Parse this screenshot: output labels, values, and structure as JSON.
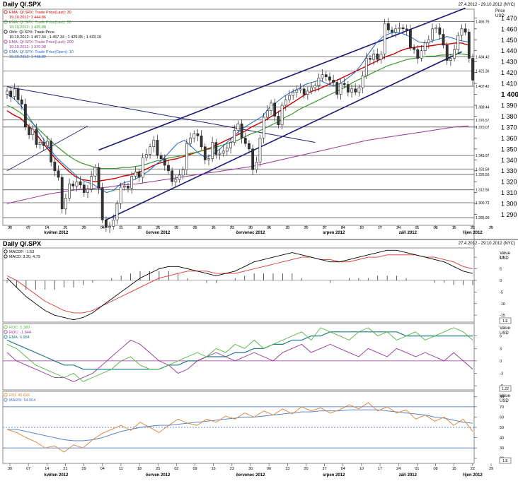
{
  "colors": {
    "candle_up": "#ffffff",
    "candle_down": "#333333",
    "ema30": "#cc0000",
    "ema50": "#3a9a2a",
    "ema200": "#993399",
    "ema10": "#2266cc",
    "trendline": "#1a1a7a",
    "hline": "#555555",
    "macd": "#000000",
    "macd_signal": "#dd3333",
    "roc": "#4fb83a",
    "roc2": "#993399",
    "roc_ema": "#1f7a8a",
    "rsi": "#e08030",
    "rsi_ma": "#4477cc",
    "band_line": "#3366cc"
  },
  "top_panel": {
    "title": "Daily Q/.SPX",
    "date_range": "27.4.2012 - 29.10.2012 (NYC)",
    "axis_title_1": "Price",
    "axis_title_2": "USD",
    "legend": [
      {
        "line1": "EMA: Q/.SPX: Trade Price(Last): 30",
        "line2": "19.10.2012: 1 444.86",
        "color": "#cc0000"
      },
      {
        "line1": "EMA: Q/.SPX: Trade Price(Last): 50",
        "line2": "19.10.2012: 1 435.88",
        "color": "#3a9a2a"
      },
      {
        "line1": "Ohlc: Q/.SPX: Trade Price",
        "line2": "19.10.2012: 1 457.34 ; 1 457.34 ; 1 429.85 ; 1 433.19",
        "color": "#000000"
      },
      {
        "line1": "EMA: Q/.SPX: Trade Price(Last): 200",
        "line2": "19.10.2012: 1 370.98",
        "color": "#993399"
      },
      {
        "line1": "EMA: Q/.SPX: Trade Price(Open): 10",
        "line2": "19.10.2012: 1 448.80",
        "color": "#2266cc"
      }
    ],
    "y_ticks": [
      1290,
      1300,
      1310,
      1320,
      1330,
      1340,
      1350,
      1360,
      1370,
      1380,
      1390,
      1400,
      1410,
      1420,
      1430,
      1440,
      1450,
      1460,
      1470
    ],
    "level_lines": [
      {
        "value": 1466.75,
        "label": "1 466.75"
      },
      {
        "value": 1434.42,
        "label": "1 434.42"
      },
      {
        "value": 1421.36,
        "label": "1 421.36"
      },
      {
        "value": 1407.42,
        "label": "1 407.42"
      },
      {
        "value": 1388.44,
        "label": "1 388.44"
      },
      {
        "value": 1376.57,
        "label": "1 376.57"
      },
      {
        "value": 1370.07,
        "label": "1 370.07"
      },
      {
        "value": 1343.97,
        "label": "1 343.97"
      },
      {
        "value": 1331.58,
        "label": "1 331.58"
      },
      {
        "value": 1326.55,
        "label": "1 326.55"
      },
      {
        "value": 1312.56,
        "label": "1 312.56"
      },
      {
        "value": 1300.73,
        "label": "1 300.73"
      },
      {
        "value": 1286.99,
        "label": "1 286.99"
      }
    ]
  },
  "macd_panel": {
    "title": "Daily Q/.SPX",
    "date_range": "27.4.2012 - 29.10.2012 (NYC)",
    "axis_title_1": "Value",
    "axis_title_2": "USD",
    "legend": [
      {
        "text": "MACDF: -1.53",
        "color": "#000000"
      },
      {
        "text": "MACD: 3.20; 4.73",
        "color": "#000000"
      }
    ],
    "y_ticks": [
      -15,
      -10,
      -5,
      0,
      5,
      10
    ],
    "unit_box": "1.E"
  },
  "roc_panel": {
    "axis_title_1": "Value",
    "axis_title_2": "USD",
    "legend": [
      {
        "text": "ROC: 5.380",
        "color": "#4fb83a"
      },
      {
        "text": "ROC: -1.844",
        "color": "#993399"
      },
      {
        "text": "EMA: 6.984",
        "color": "#1f7a8a"
      }
    ],
    "y_ticks": [
      -6,
      -3,
      0,
      3,
      6
    ],
    "unit_box": "1.22"
  },
  "rsi_panel": {
    "axis_title_1": "Value",
    "axis_title_2": "USD",
    "legend": [
      {
        "text": "RSI: 45.626",
        "color": "#e08030"
      },
      {
        "text": "MARSI: 54.064",
        "color": "#4477cc"
      }
    ],
    "y_ticks": [
      20,
      30,
      40,
      50,
      60,
      70,
      80
    ],
    "band_lines": [
      30,
      50,
      70
    ],
    "unit_box": "1.E"
  },
  "x_axis": {
    "day_ticks": [
      "30",
      "07",
      "14",
      "21",
      "29",
      "04",
      "11",
      "18",
      "25",
      "02",
      "09",
      "16",
      "23",
      "30",
      "06",
      "13",
      "20",
      "27",
      "04",
      "10",
      "17",
      "24",
      "01",
      "08",
      "15",
      "22",
      "29"
    ],
    "months": [
      "květen 2012",
      "červen 2012",
      "červenec 2012",
      "srpen 2012",
      "září 2012",
      "říjen 2012"
    ]
  },
  "chart_data": [
    {
      "type": "candlestick",
      "title": "Daily Q/.SPX",
      "ylabel": "Price USD",
      "ylim": [
        1280,
        1478
      ],
      "x_range": [
        "2012-04-27",
        "2012-10-29"
      ],
      "series": [
        {
          "name": "OHLC close (Q/.SPX: Trade Price)",
          "values": [
            1403,
            1398,
            1405,
            1395,
            1391,
            1370,
            1363,
            1368,
            1354,
            1356,
            1353,
            1357,
            1338,
            1330,
            1324,
            1295,
            1305,
            1318,
            1316,
            1320,
            1317,
            1310,
            1313,
            1325,
            1333,
            1314,
            1285,
            1278,
            1279,
            1285,
            1300,
            1315,
            1316,
            1314,
            1325,
            1329,
            1324,
            1342,
            1345,
            1352,
            1358,
            1344,
            1341,
            1335,
            1330,
            1320,
            1322,
            1326,
            1331,
            1355,
            1360,
            1364,
            1362,
            1352,
            1340,
            1341,
            1356,
            1345,
            1346,
            1348,
            1351,
            1356,
            1367,
            1373,
            1360,
            1355,
            1350,
            1331,
            1338,
            1360,
            1379,
            1385,
            1392,
            1380,
            1372,
            1390,
            1395,
            1399,
            1402,
            1404,
            1405,
            1400,
            1403,
            1406,
            1408,
            1415,
            1418,
            1416,
            1413,
            1411,
            1400,
            1410,
            1409,
            1402,
            1405,
            1402,
            1406,
            1417,
            1433,
            1432,
            1437,
            1432,
            1437,
            1465,
            1459,
            1457,
            1460,
            1461,
            1460,
            1459,
            1443,
            1441,
            1433,
            1440,
            1447,
            1450,
            1460,
            1461,
            1455,
            1445,
            1431,
            1433,
            1441,
            1454,
            1460,
            1457,
            1433,
            1413
          ]
        },
        {
          "name": "EMA Trade Price(Last) 30",
          "values": [
            1385,
            1381,
            1378,
            1372,
            1366,
            1358,
            1350,
            1342,
            1336,
            1330,
            1325,
            1322,
            1321,
            1320,
            1321,
            1322,
            1323,
            1325,
            1326,
            1328,
            1330,
            1333,
            1336,
            1338,
            1340,
            1341,
            1343,
            1345,
            1347,
            1349,
            1351,
            1354,
            1357,
            1360,
            1363,
            1366,
            1370,
            1373,
            1376,
            1380,
            1384,
            1388,
            1392,
            1396,
            1400,
            1403,
            1405,
            1408,
            1411,
            1414,
            1417,
            1420,
            1423,
            1426,
            1429,
            1432,
            1435,
            1437,
            1440,
            1442,
            1443,
            1444,
            1444,
            1445,
            1446,
            1446,
            1447,
            1447,
            1445
          ]
        },
        {
          "name": "EMA Trade Price(Last) 50",
          "values": [
            1390,
            1387,
            1383,
            1378,
            1372,
            1366,
            1360,
            1354,
            1349,
            1344,
            1340,
            1337,
            1335,
            1333,
            1332,
            1332,
            1332,
            1333,
            1333,
            1334,
            1335,
            1337,
            1339,
            1340,
            1342,
            1343,
            1344,
            1346,
            1347,
            1349,
            1350,
            1352,
            1354,
            1356,
            1358,
            1361,
            1364,
            1366,
            1369,
            1372,
            1375,
            1379,
            1382,
            1386,
            1389,
            1392,
            1395,
            1398,
            1401,
            1404,
            1407,
            1411,
            1414,
            1417,
            1420,
            1423,
            1426,
            1428,
            1430,
            1432,
            1433,
            1434,
            1435,
            1435,
            1436,
            1436,
            1437,
            1437,
            1436
          ]
        },
        {
          "name": "EMA Trade Price(Last) 200",
          "values": [
            1300,
            1303,
            1306,
            1309,
            1311,
            1313,
            1314,
            1315,
            1317,
            1318,
            1320,
            1322,
            1324,
            1326,
            1328,
            1330,
            1332,
            1334,
            1337,
            1340,
            1343,
            1346,
            1349,
            1352,
            1355,
            1358,
            1360,
            1362,
            1364,
            1366,
            1368,
            1370,
            1371
          ]
        },
        {
          "name": "EMA Trade Price(Open) 10",
          "values": [
            1400,
            1396,
            1389,
            1380,
            1370,
            1360,
            1350,
            1342,
            1336,
            1330,
            1324,
            1320,
            1318,
            1314,
            1310,
            1312,
            1318,
            1320,
            1322,
            1326,
            1330,
            1336,
            1341,
            1348,
            1355,
            1358,
            1352,
            1346,
            1342,
            1345,
            1350,
            1356,
            1362,
            1368,
            1372,
            1376,
            1380,
            1388,
            1393,
            1398,
            1402,
            1405,
            1409,
            1411,
            1413,
            1410,
            1408,
            1410,
            1415,
            1420,
            1428,
            1438,
            1447,
            1453,
            1456,
            1457,
            1455,
            1452,
            1448,
            1447,
            1449,
            1451,
            1453,
            1451,
            1449,
            1448
          ]
        }
      ]
    },
    {
      "type": "line",
      "title": "MACD",
      "ylabel": "Value USD",
      "ylim": [
        -18,
        14
      ],
      "series": [
        {
          "name": "MACD",
          "values": [
            1,
            -3,
            -7,
            -10,
            -13,
            -15,
            -16,
            -17,
            -16,
            -14,
            -11,
            -8,
            -5,
            -2,
            1,
            3,
            5,
            6,
            6,
            5,
            4,
            3,
            2,
            3,
            4,
            6,
            8,
            9,
            10,
            11,
            12,
            11,
            10,
            9,
            8,
            8,
            9,
            10,
            11,
            12,
            13,
            13,
            12,
            11,
            10,
            9,
            8,
            6,
            4,
            3
          ]
        },
        {
          "name": "Signal",
          "values": [
            2,
            0,
            -3,
            -6,
            -9,
            -11,
            -13,
            -14,
            -14,
            -13,
            -11,
            -9,
            -7,
            -5,
            -3,
            -1,
            1,
            2,
            3,
            4,
            4,
            4,
            3,
            3,
            3,
            4,
            5,
            6,
            7,
            8,
            9,
            10,
            10,
            9,
            9,
            8,
            8,
            9,
            10,
            10,
            11,
            11,
            11,
            11,
            10,
            10,
            9,
            8,
            6,
            5
          ]
        },
        {
          "name": "Histogram",
          "values": [
            -1,
            -3,
            -4,
            -4,
            -4,
            -4,
            -3,
            -3,
            -2,
            -1,
            0,
            1,
            2,
            3,
            4,
            4,
            4,
            4,
            3,
            1,
            0,
            -1,
            -1,
            0,
            1,
            2,
            3,
            3,
            3,
            3,
            3,
            1,
            0,
            0,
            -1,
            0,
            1,
            1,
            1,
            2,
            2,
            2,
            1,
            0,
            0,
            -1,
            -1,
            -2,
            -2,
            -2
          ]
        }
      ]
    },
    {
      "type": "line",
      "title": "ROC",
      "ylabel": "Value USD",
      "ylim": [
        -7,
        9
      ],
      "series": [
        {
          "name": "ROC",
          "values": [
            4,
            3,
            1,
            -1,
            -2,
            -3,
            -4,
            -3,
            -5,
            -4,
            -3,
            -2,
            0,
            1,
            -1,
            -2,
            -2,
            -1,
            0,
            1,
            2,
            1,
            3,
            2,
            4,
            3,
            5,
            3,
            4,
            5,
            6,
            7,
            5,
            8,
            7,
            6,
            5,
            7,
            8,
            6,
            7,
            5,
            6,
            7,
            5,
            6,
            7,
            8,
            7,
            5
          ]
        },
        {
          "name": "ROC",
          "values": [
            2,
            0,
            -1,
            -2,
            -3,
            -4,
            -4,
            -5,
            -4,
            -3,
            -1,
            1,
            3,
            5,
            4,
            2,
            0,
            -1,
            -3,
            -2,
            0,
            1,
            2,
            1,
            0,
            1,
            2,
            1,
            0,
            2,
            3,
            4,
            2,
            3,
            4,
            3,
            2,
            1,
            3,
            2,
            1,
            3,
            2,
            1,
            2,
            1,
            0,
            2,
            0,
            -2
          ]
        },
        {
          "name": "EMA",
          "values": [
            5,
            4,
            3,
            2,
            1,
            0,
            -1,
            -1,
            -2,
            -2,
            -2,
            -2,
            -2,
            -2,
            -2,
            -2,
            -2,
            -1,
            -1,
            0,
            0,
            1,
            1,
            1,
            2,
            2,
            3,
            3,
            4,
            4,
            5,
            5,
            6,
            6,
            7,
            7,
            7,
            7,
            7,
            7,
            7,
            7,
            6,
            6,
            6,
            6,
            6,
            6,
            6,
            6
          ]
        }
      ]
    },
    {
      "type": "line",
      "title": "RSI",
      "ylabel": "Value USD",
      "ylim": [
        15,
        85
      ],
      "series": [
        {
          "name": "RSI",
          "values": [
            48,
            45,
            40,
            36,
            30,
            32,
            26,
            33,
            30,
            38,
            44,
            48,
            52,
            47,
            55,
            50,
            45,
            52,
            58,
            54,
            52,
            58,
            55,
            61,
            58,
            64,
            60,
            66,
            62,
            68,
            63,
            70,
            66,
            69,
            64,
            67,
            72,
            68,
            74,
            66,
            70,
            64,
            67,
            58,
            62,
            56,
            60,
            52,
            58,
            46
          ]
        },
        {
          "name": "MARSI",
          "values": [
            48,
            48,
            46,
            44,
            42,
            40,
            38,
            37,
            37,
            38,
            40,
            43,
            46,
            48,
            50,
            51,
            52,
            52,
            53,
            54,
            55,
            56,
            57,
            58,
            59,
            60,
            60,
            61,
            62,
            63,
            64,
            65,
            65,
            66,
            66,
            66,
            67,
            67,
            67,
            67,
            66,
            65,
            64,
            63,
            62,
            60,
            59,
            57,
            55,
            54
          ]
        }
      ]
    }
  ]
}
